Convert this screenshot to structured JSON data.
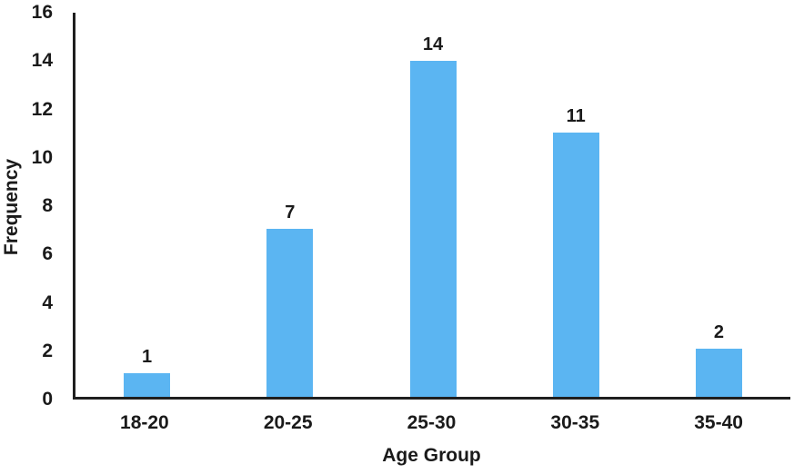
{
  "chart_data": {
    "type": "bar",
    "title": "",
    "categories": [
      "18-20",
      "20-25",
      "25-30",
      "30-35",
      "35-40"
    ],
    "values": [
      1,
      7,
      14,
      11,
      2
    ],
    "data_labels": [
      "1",
      "7",
      "14",
      "11",
      "2"
    ],
    "xlabel": "Age Group",
    "ylabel": "Frequency",
    "ylim": [
      0,
      16
    ],
    "yticks": [
      0,
      2,
      4,
      6,
      8,
      10,
      12,
      14,
      16
    ],
    "grid": false,
    "legend_position": "none",
    "bar_color": "#5BB5F2",
    "axis_color": "#1f1f1f",
    "text_color": "#1a1a1a"
  }
}
